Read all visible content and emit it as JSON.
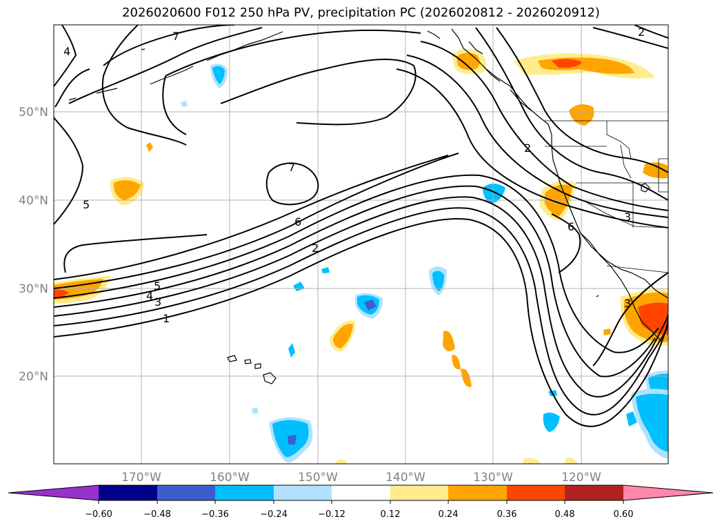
{
  "title": "2026020600 F012 250 hPa PV, precipitation PC (2026020812 - 2026020912)",
  "map": {
    "lat_labels": [
      "50°N",
      "40°N",
      "30°N",
      "20°N"
    ],
    "lon_labels": [
      "170°W",
      "160°W",
      "150°W",
      "140°W",
      "130°W",
      "120°W"
    ],
    "contour_labels": [
      "7",
      "4",
      "5",
      "7",
      "6",
      "2",
      "5",
      "4",
      "3",
      "1",
      "2",
      "2",
      "3",
      "6",
      "3"
    ]
  },
  "colorbar": {
    "ticks": [
      "−0.60",
      "−0.48",
      "−0.36",
      "−0.24",
      "−0.12",
      "0.12",
      "0.24",
      "0.36",
      "0.48",
      "0.60"
    ],
    "colors": [
      "#9932cc",
      "#00008b",
      "#3a5fcd",
      "#00bfff",
      "#b0e2ff",
      "#ffffff",
      "#ffec8b",
      "#ffa500",
      "#ff4500",
      "#b22222",
      "#ff88aa"
    ]
  }
}
